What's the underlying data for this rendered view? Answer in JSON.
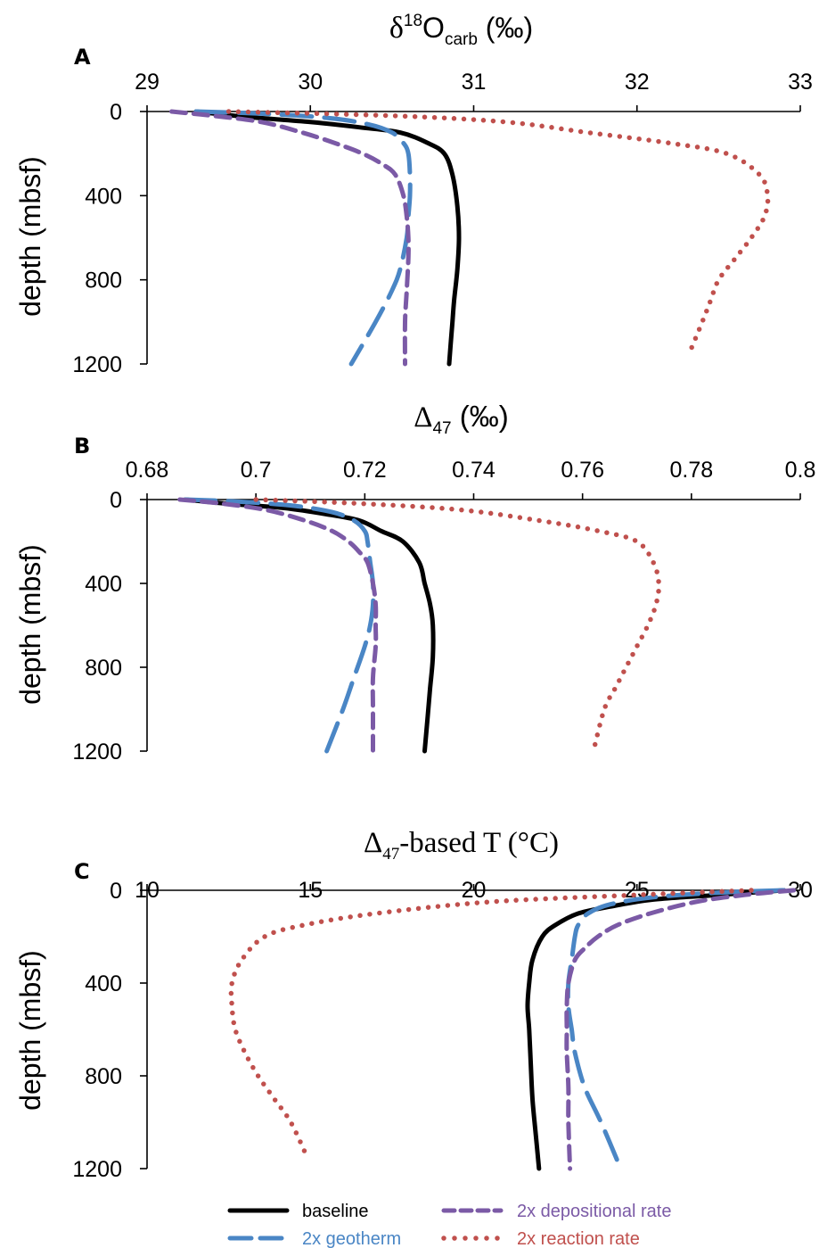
{
  "chart_data": [
    {
      "type": "line",
      "panel": "A",
      "x_axis_position": "top",
      "xlabel": {
        "pre": "δ",
        "sup": "18",
        "main": "O",
        "sub": "carb",
        "post": " (‰)"
      },
      "ylabel": "depth (mbsf)",
      "xlim": [
        29,
        33
      ],
      "ylim": [
        0,
        1200
      ],
      "y_inverted": true,
      "xticks": [
        "29",
        "30",
        "31",
        "32",
        "33"
      ],
      "yticks": [
        "0",
        "400",
        "800",
        "1200"
      ],
      "grid": false,
      "series": [
        {
          "key": "baseline",
          "x": [
            29.3,
            29.6,
            30.0,
            30.3,
            30.55,
            30.72,
            30.82,
            30.87,
            30.9,
            30.91,
            30.9,
            30.88,
            30.87,
            30.86,
            30.85
          ],
          "y": [
            0,
            25,
            50,
            75,
            100,
            150,
            200,
            300,
            450,
            600,
            750,
            900,
            1000,
            1100,
            1200
          ]
        },
        {
          "key": "geotherm",
          "x": [
            29.3,
            29.7,
            30.1,
            30.35,
            30.5,
            30.57,
            30.6,
            30.61,
            30.61,
            30.6,
            30.59,
            30.55,
            30.5,
            30.4,
            30.25
          ],
          "y": [
            0,
            10,
            30,
            60,
            100,
            150,
            200,
            300,
            400,
            500,
            600,
            750,
            850,
            1000,
            1200
          ]
        },
        {
          "key": "depositional",
          "x": [
            29.15,
            29.4,
            29.7,
            29.95,
            30.15,
            30.32,
            30.44,
            30.52,
            30.57,
            30.59,
            30.6,
            30.6,
            30.59,
            30.58,
            30.58
          ],
          "y": [
            0,
            20,
            50,
            100,
            150,
            200,
            250,
            300,
            400,
            500,
            600,
            700,
            850,
            1000,
            1200
          ]
        },
        {
          "key": "reaction",
          "x": [
            29.5,
            30.5,
            31.2,
            31.7,
            32.2,
            32.55,
            32.75,
            32.8,
            32.78,
            32.7,
            32.6,
            32.5,
            32.45,
            32.4,
            32.32
          ],
          "y": [
            0,
            20,
            50,
            100,
            150,
            200,
            300,
            400,
            500,
            600,
            700,
            800,
            900,
            1000,
            1150
          ]
        }
      ]
    },
    {
      "type": "line",
      "panel": "B",
      "x_axis_position": "top",
      "xlabel": {
        "pre": "Δ",
        "sub": "47",
        "post": " (‰)"
      },
      "ylabel": "depth (mbsf)",
      "xlim": [
        0.68,
        0.8
      ],
      "ylim": [
        0,
        1200
      ],
      "y_inverted": true,
      "xticks": [
        "0.68",
        "0.7",
        "0.72",
        "0.74",
        "0.76",
        "0.78",
        "0.8"
      ],
      "yticks": [
        "0",
        "400",
        "800",
        "1200"
      ],
      "grid": false,
      "series": [
        {
          "key": "baseline",
          "x": [
            0.687,
            0.695,
            0.705,
            0.713,
            0.719,
            0.723,
            0.727,
            0.73,
            0.731,
            0.732,
            0.7325,
            0.7325,
            0.732,
            0.7315,
            0.731
          ],
          "y": [
            0,
            20,
            40,
            70,
            100,
            150,
            200,
            300,
            400,
            500,
            600,
            750,
            900,
            1050,
            1200
          ]
        },
        {
          "key": "geotherm",
          "x": [
            0.687,
            0.697,
            0.707,
            0.714,
            0.718,
            0.72,
            0.7205,
            0.721,
            0.7215,
            0.7215,
            0.721,
            0.72,
            0.718,
            0.716,
            0.713
          ],
          "y": [
            0,
            10,
            30,
            60,
            100,
            150,
            200,
            300,
            400,
            500,
            600,
            700,
            850,
            1000,
            1200
          ]
        },
        {
          "key": "depositional",
          "x": [
            0.686,
            0.694,
            0.702,
            0.709,
            0.714,
            0.717,
            0.719,
            0.7205,
            0.7215,
            0.722,
            0.722,
            0.722,
            0.7215,
            0.7215,
            0.7215
          ],
          "y": [
            0,
            20,
            50,
            100,
            150,
            200,
            250,
            300,
            400,
            500,
            600,
            700,
            850,
            1000,
            1200
          ]
        },
        {
          "key": "reaction",
          "x": [
            0.7,
            0.72,
            0.738,
            0.752,
            0.763,
            0.77,
            0.773,
            0.774,
            0.7735,
            0.772,
            0.77,
            0.768,
            0.766,
            0.764,
            0.762
          ],
          "y": [
            0,
            20,
            50,
            100,
            150,
            200,
            300,
            400,
            500,
            600,
            700,
            800,
            900,
            1000,
            1200
          ]
        }
      ]
    },
    {
      "type": "line",
      "panel": "C",
      "x_axis_position": "top",
      "xlabel": {
        "pre": "Δ",
        "sub": "47",
        "post": "-based T (°C)"
      },
      "ylabel": "depth (mbsf)",
      "xlim": [
        10,
        30
      ],
      "ylim": [
        0,
        1200
      ],
      "y_inverted": true,
      "xticks": [
        "10",
        "15",
        "20",
        "25",
        "30"
      ],
      "yticks": [
        "0",
        "400",
        "800",
        "1200"
      ],
      "grid": false,
      "series": [
        {
          "key": "baseline",
          "x": [
            29.5,
            27.5,
            25.5,
            24.2,
            23.2,
            22.5,
            22.1,
            21.8,
            21.7,
            21.65,
            21.7,
            21.75,
            21.8,
            21.9,
            22.0
          ],
          "y": [
            0,
            20,
            40,
            70,
            100,
            150,
            200,
            300,
            400,
            500,
            600,
            750,
            900,
            1050,
            1200
          ]
        },
        {
          "key": "geotherm",
          "x": [
            29.5,
            27.5,
            25.5,
            24.2,
            23.5,
            23.2,
            23.1,
            23.0,
            22.9,
            22.9,
            23.0,
            23.1,
            23.4,
            23.9,
            24.5
          ],
          "y": [
            0,
            10,
            30,
            60,
            100,
            150,
            200,
            300,
            400,
            500,
            600,
            700,
            850,
            1000,
            1200
          ]
        },
        {
          "key": "depositional",
          "x": [
            29.8,
            28.3,
            26.8,
            25.4,
            24.4,
            23.8,
            23.4,
            23.1,
            22.9,
            22.85,
            22.85,
            22.85,
            22.9,
            22.9,
            22.95
          ],
          "y": [
            0,
            20,
            50,
            100,
            150,
            200,
            250,
            300,
            400,
            500,
            600,
            700,
            850,
            1000,
            1200
          ]
        },
        {
          "key": "reaction",
          "x": [
            28.5,
            25.0,
            20.5,
            17.0,
            14.8,
            13.6,
            12.9,
            12.6,
            12.6,
            12.7,
            13.0,
            13.4,
            13.9,
            14.4,
            14.9
          ],
          "y": [
            0,
            20,
            50,
            100,
            150,
            200,
            300,
            400,
            500,
            600,
            700,
            800,
            900,
            1000,
            1150
          ]
        }
      ]
    }
  ],
  "panels": [
    {
      "letter": "A"
    },
    {
      "letter": "B"
    },
    {
      "letter": "C"
    }
  ],
  "legend": {
    "placement": "bottom-center",
    "entries": [
      {
        "key": "baseline",
        "label": "baseline",
        "color": "#000000",
        "style": "solid"
      },
      {
        "key": "geotherm",
        "label": "2x geotherm",
        "color": "#4a86c5",
        "style": "long-dash"
      },
      {
        "key": "depositional",
        "label": "2x depositional rate",
        "color": "#7b5aa6",
        "style": "dash"
      },
      {
        "key": "reaction",
        "label": "2x reaction rate",
        "color": "#c0504d",
        "style": "dot"
      }
    ]
  },
  "colors": {
    "baseline": "#000000",
    "geotherm": "#4a86c5",
    "depositional": "#7b5aa6",
    "reaction": "#c0504d",
    "title_a": "#7b5aa6"
  }
}
